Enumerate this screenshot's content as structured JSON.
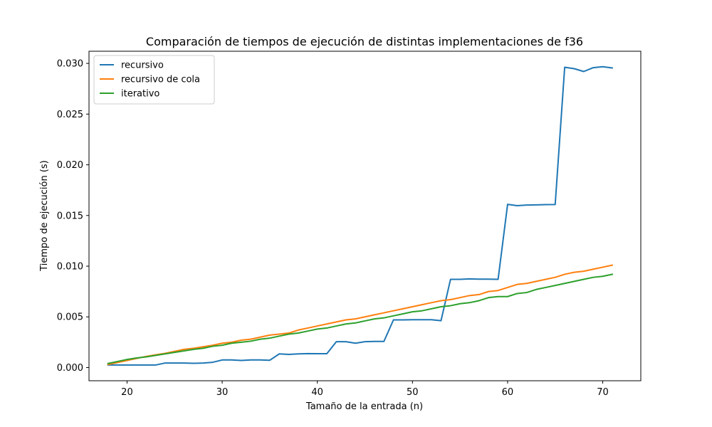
{
  "chart_data": {
    "type": "line",
    "title": "Comparación de tiempos de ejecución de distintas implementaciones de f36",
    "xlabel": "Tamaño de la entrada (n)",
    "ylabel": "Tiempo de ejecución (s)",
    "xlim": [
      16,
      74
    ],
    "ylim": [
      -0.0013,
      0.0312
    ],
    "xticks": [
      20,
      30,
      40,
      50,
      60,
      70
    ],
    "xtick_labels": [
      "20",
      "30",
      "40",
      "50",
      "60",
      "70"
    ],
    "yticks": [
      0.0,
      0.005,
      0.01,
      0.015,
      0.02,
      0.025,
      0.03
    ],
    "ytick_labels": [
      "0.000",
      "0.005",
      "0.010",
      "0.015",
      "0.020",
      "0.025",
      "0.030"
    ],
    "legend_position": "top-left",
    "grid": false,
    "x": [
      18,
      19,
      20,
      21,
      22,
      23,
      24,
      25,
      26,
      27,
      28,
      29,
      30,
      31,
      32,
      33,
      34,
      35,
      36,
      37,
      38,
      39,
      40,
      41,
      42,
      43,
      44,
      45,
      46,
      47,
      48,
      49,
      50,
      51,
      52,
      53,
      54,
      55,
      56,
      57,
      58,
      59,
      60,
      61,
      62,
      63,
      64,
      65,
      66,
      67,
      68,
      69,
      70,
      71
    ],
    "series": [
      {
        "name": "recursivo",
        "color": "#1f77b4",
        "values": [
          0.00025,
          0.00025,
          0.00025,
          0.00025,
          0.00025,
          0.00025,
          0.00045,
          0.00045,
          0.00045,
          0.00042,
          0.00045,
          0.00052,
          0.00075,
          0.00075,
          0.0007,
          0.00075,
          0.00075,
          0.00072,
          0.00135,
          0.0013,
          0.00135,
          0.00138,
          0.00137,
          0.00137,
          0.00255,
          0.00255,
          0.0024,
          0.00255,
          0.00258,
          0.00258,
          0.0047,
          0.0047,
          0.00472,
          0.00472,
          0.00472,
          0.00462,
          0.0087,
          0.0087,
          0.00875,
          0.00872,
          0.00872,
          0.0087,
          0.0161,
          0.01597,
          0.01603,
          0.01605,
          0.01607,
          0.01608,
          0.02962,
          0.02948,
          0.0292,
          0.02958,
          0.02967,
          0.02955
        ]
      },
      {
        "name": "recursivo de cola",
        "color": "#ff7f0e",
        "values": [
          0.0003,
          0.0005,
          0.0007,
          0.0009,
          0.0011,
          0.00125,
          0.0014,
          0.0016,
          0.0018,
          0.0019,
          0.00205,
          0.0022,
          0.0024,
          0.0025,
          0.0027,
          0.0028,
          0.003,
          0.0032,
          0.0033,
          0.0034,
          0.0037,
          0.0039,
          0.0041,
          0.0043,
          0.0045,
          0.0047,
          0.0048,
          0.005,
          0.0052,
          0.0054,
          0.0056,
          0.0058,
          0.006,
          0.0062,
          0.0064,
          0.0066,
          0.0067,
          0.0069,
          0.0071,
          0.0072,
          0.0075,
          0.0076,
          0.0079,
          0.0082,
          0.0083,
          0.0085,
          0.0087,
          0.0089,
          0.0092,
          0.0094,
          0.0095,
          0.0097,
          0.0099,
          0.0101
        ]
      },
      {
        "name": "iterativo",
        "color": "#2ca02c",
        "values": [
          0.0004,
          0.0006,
          0.0008,
          0.00095,
          0.00105,
          0.0012,
          0.00135,
          0.0015,
          0.00165,
          0.0018,
          0.0019,
          0.0021,
          0.0022,
          0.0024,
          0.0025,
          0.0026,
          0.0028,
          0.0029,
          0.0031,
          0.0033,
          0.0034,
          0.0036,
          0.0038,
          0.0039,
          0.0041,
          0.0043,
          0.0044,
          0.0046,
          0.0048,
          0.0049,
          0.0051,
          0.0053,
          0.0055,
          0.0056,
          0.0058,
          0.006,
          0.0061,
          0.0063,
          0.0064,
          0.0066,
          0.0069,
          0.007,
          0.007,
          0.0073,
          0.0074,
          0.0077,
          0.0079,
          0.0081,
          0.0083,
          0.0085,
          0.0087,
          0.0089,
          0.009,
          0.0092
        ]
      }
    ]
  }
}
